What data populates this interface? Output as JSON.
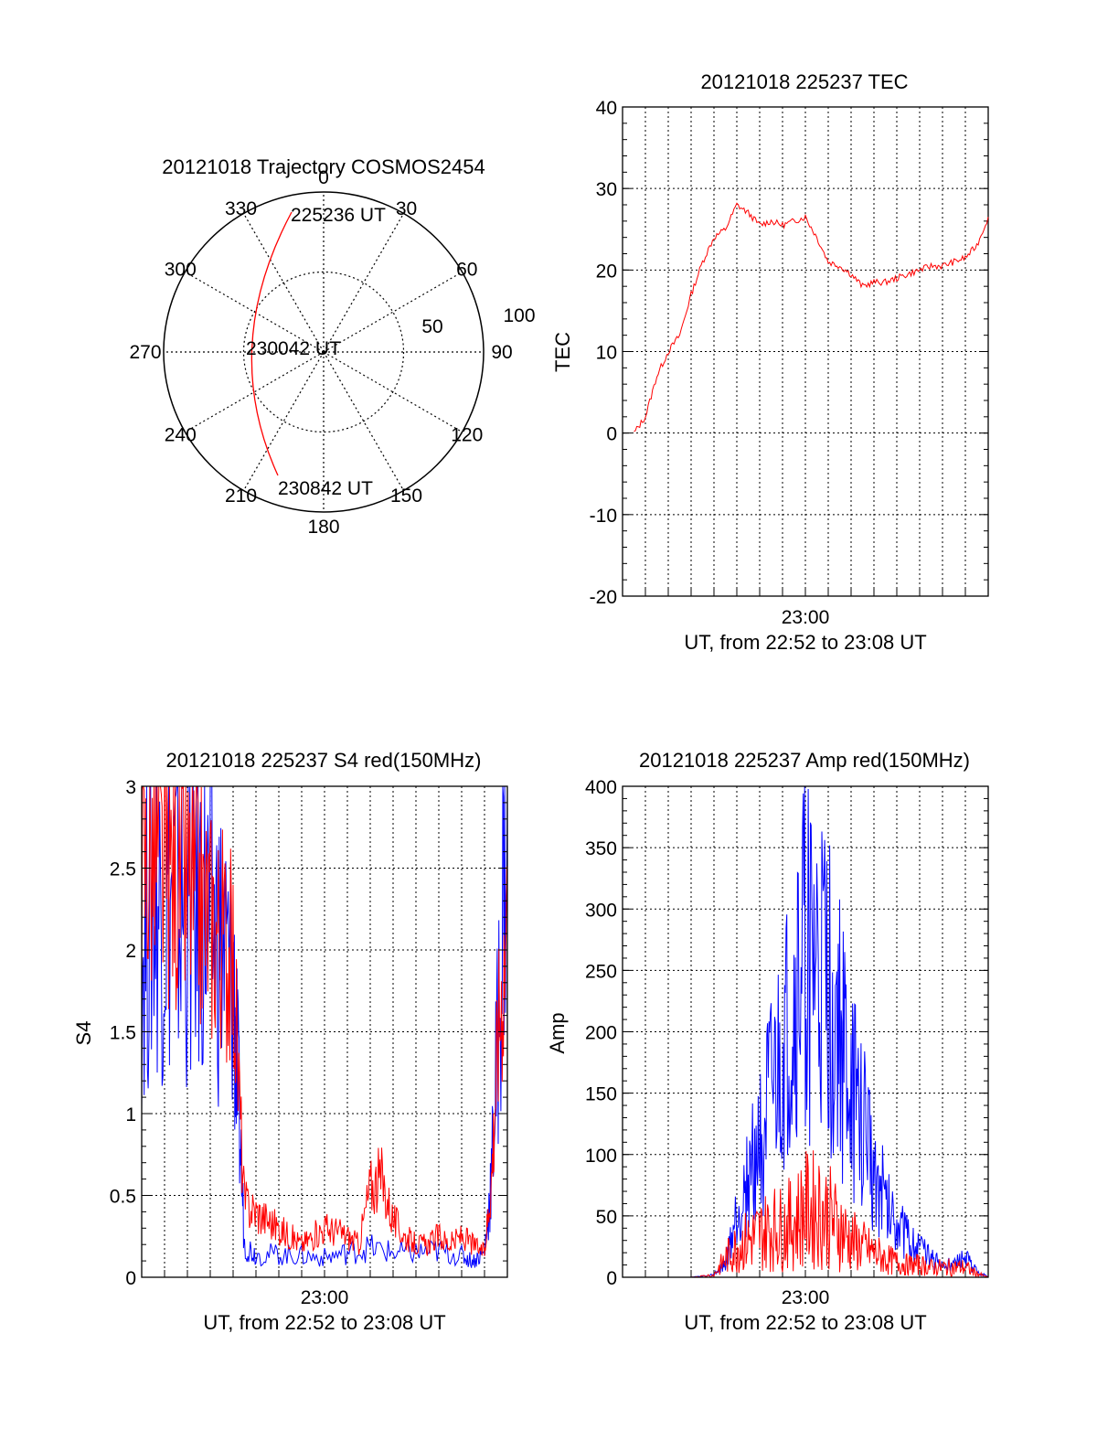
{
  "colors": {
    "red": "#ff0000",
    "blue": "#0000ff",
    "grid": "#000000",
    "background": "#ffffff"
  },
  "polar": {
    "title": "20121018 Trajectory COSMOS2454",
    "azimuth_labels": [
      "0",
      "30",
      "60",
      "90",
      "120",
      "150",
      "180",
      "210",
      "240",
      "270",
      "300",
      "330"
    ],
    "ring_labels": [
      "50",
      "100"
    ],
    "start_label": "225236 UT",
    "mid_label": "230042 UT",
    "end_label": "230842 UT"
  },
  "chart_data": [
    {
      "type": "line",
      "title": "20121018 225237 TEC",
      "ylabel": "TEC",
      "xlabel": "UT, from 22:52 to 23:08 UT",
      "xtick_label": "23:00",
      "ylim": [
        -20,
        40
      ],
      "yticks": [
        "-20",
        "-10",
        "0",
        "10",
        "20",
        "30",
        "40"
      ],
      "series": [
        {
          "color": "red",
          "x": [
            0.5,
            1.0,
            1.5,
            2.0,
            2.5,
            3.0,
            3.5,
            4.0,
            4.5,
            5.0,
            5.5,
            6.0,
            6.5,
            7.0,
            7.5,
            8.0,
            8.5,
            9.0,
            9.5,
            10.0,
            10.5,
            11.0,
            11.5,
            12.0,
            12.5,
            13.0,
            13.5,
            14.0,
            14.5,
            15.0,
            15.5,
            16.0
          ],
          "values": [
            0,
            2,
            7,
            10,
            12,
            17,
            21,
            24,
            25,
            28,
            27,
            25.5,
            26,
            25.5,
            26,
            26.5,
            24,
            21,
            20.5,
            19.5,
            18,
            18.5,
            18.5,
            19,
            19.5,
            20,
            20.5,
            20.5,
            21,
            21.5,
            23,
            26.5
          ]
        }
      ]
    },
    {
      "type": "line",
      "title": "20121018 225237 S4 red(150MHz)",
      "ylabel": "S4",
      "xlabel": "UT, from 22:52 to 23:08 UT",
      "xtick_label": "23:00",
      "ylim": [
        0,
        3
      ],
      "yticks": [
        "0",
        "0.5",
        "1",
        "1.5",
        "2",
        "2.5",
        "3"
      ],
      "series": [
        {
          "color": "blue",
          "x": [
            0.0,
            0.5,
            1.0,
            1.5,
            2.0,
            2.5,
            3.0,
            3.5,
            4.0,
            4.2,
            4.5,
            5.0,
            6.0,
            7.0,
            8.0,
            9.0,
            10.0,
            11.0,
            12.0,
            13.0,
            14.0,
            14.5,
            15.0,
            15.3,
            15.6,
            16.0
          ],
          "values": [
            2.0,
            2.3,
            2.3,
            2.3,
            2.2,
            2.3,
            2.2,
            2.0,
            1.8,
            1.2,
            0.2,
            0.14,
            0.14,
            0.13,
            0.12,
            0.15,
            0.18,
            0.15,
            0.15,
            0.16,
            0.13,
            0.1,
            0.15,
            0.6,
            1.5,
            3.0
          ]
        },
        {
          "color": "red",
          "x": [
            0.0,
            0.5,
            1.0,
            1.5,
            2.0,
            2.5,
            3.0,
            3.5,
            4.0,
            4.5,
            5.0,
            5.5,
            6.0,
            6.5,
            7.0,
            7.5,
            8.0,
            8.5,
            9.0,
            9.5,
            10.0,
            10.5,
            11.0,
            11.5,
            12.0,
            12.5,
            13.0,
            13.5,
            14.0,
            14.5,
            15.0,
            15.3,
            15.6,
            16.0
          ],
          "values": [
            2.5,
            2.6,
            2.5,
            2.5,
            2.4,
            2.3,
            2.2,
            2.1,
            1.9,
            0.45,
            0.4,
            0.35,
            0.3,
            0.25,
            0.2,
            0.25,
            0.3,
            0.28,
            0.25,
            0.2,
            0.55,
            0.6,
            0.35,
            0.25,
            0.2,
            0.2,
            0.25,
            0.2,
            0.25,
            0.2,
            0.15,
            0.6,
            1.5,
            2.2
          ]
        }
      ]
    },
    {
      "type": "line",
      "title": "20121018 225237 Amp red(150MHz)",
      "ylabel": "Amp",
      "xlabel": "UT, from 22:52 to 23:08 UT",
      "xtick_label": "23:00",
      "ylim": [
        0,
        400
      ],
      "yticks": [
        "0",
        "50",
        "100",
        "150",
        "200",
        "250",
        "300",
        "350",
        "400"
      ],
      "series": [
        {
          "color": "blue",
          "x": [
            0.0,
            1.0,
            2.0,
            3.0,
            4.0,
            4.5,
            5.0,
            5.5,
            6.0,
            6.5,
            7.0,
            7.5,
            8.0,
            8.5,
            9.0,
            9.5,
            10.0,
            10.5,
            11.0,
            11.5,
            12.0,
            12.5,
            13.0,
            13.5,
            14.0,
            14.5,
            15.0,
            15.5,
            16.0
          ],
          "values": [
            0,
            0,
            0,
            0,
            2,
            10,
            50,
            80,
            110,
            140,
            170,
            210,
            270,
            240,
            230,
            200,
            150,
            130,
            90,
            60,
            50,
            30,
            25,
            15,
            10,
            10,
            15,
            5,
            0
          ]
        },
        {
          "color": "red",
          "x": [
            0.0,
            1.0,
            2.0,
            3.0,
            4.0,
            4.5,
            5.0,
            5.5,
            6.0,
            6.5,
            7.0,
            7.5,
            8.0,
            8.5,
            9.0,
            9.5,
            10.0,
            10.5,
            11.0,
            11.5,
            12.0,
            12.5,
            13.0,
            13.5,
            14.0,
            14.5,
            15.0,
            15.5,
            16.0
          ],
          "values": [
            0,
            0,
            0,
            0,
            2,
            15,
            25,
            30,
            35,
            40,
            40,
            45,
            55,
            55,
            50,
            40,
            30,
            25,
            20,
            15,
            12,
            10,
            10,
            8,
            8,
            8,
            8,
            3,
            0
          ]
        }
      ]
    }
  ]
}
